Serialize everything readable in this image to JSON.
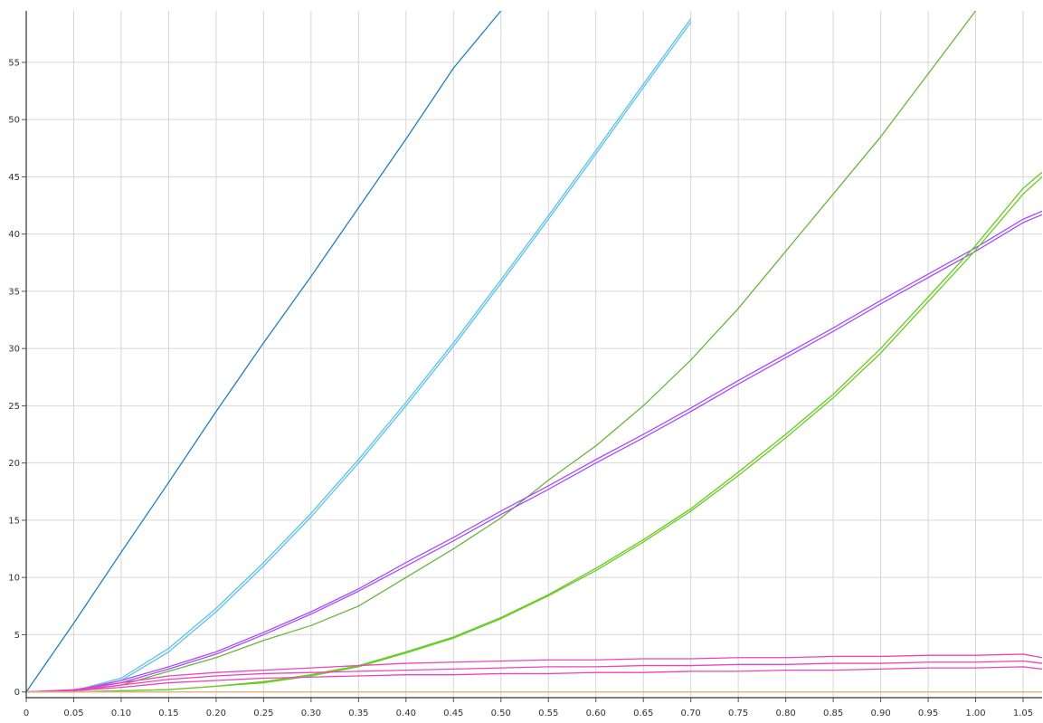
{
  "chart_data": {
    "type": "line",
    "title": "",
    "xlabel": "",
    "ylabel": "",
    "xlim": [
      0,
      1.07
    ],
    "ylim": [
      -0.5,
      59.5
    ],
    "grid": true,
    "legend": "none",
    "x_ticks": [
      "0",
      "0.05",
      "0.10",
      "0.15",
      "0.20",
      "0.25",
      "0.30",
      "0.35",
      "0.40",
      "0.45",
      "0.50",
      "0.55",
      "0.60",
      "0.65",
      "0.70",
      "0.75",
      "0.80",
      "0.85",
      "0.90",
      "0.95",
      "1.00",
      "1.05"
    ],
    "y_ticks": [
      "0",
      "5",
      "10",
      "15",
      "20",
      "25",
      "30",
      "35",
      "40",
      "45",
      "50",
      "55"
    ],
    "x": [
      0,
      0.05,
      0.1,
      0.15,
      0.2,
      0.25,
      0.3,
      0.35,
      0.4,
      0.45,
      0.5,
      0.55,
      0.6,
      0.65,
      0.7,
      0.75,
      0.8,
      0.85,
      0.9,
      0.95,
      1.0,
      1.05,
      1.07
    ],
    "series": [
      {
        "color": "#1f7fbf",
        "values": [
          0,
          6.0,
          12.2,
          18.3,
          24.5,
          30.5,
          36.3,
          42.3,
          48.3,
          54.5,
          59.5,
          null,
          null,
          null,
          null,
          null,
          null,
          null,
          null,
          null,
          null,
          null,
          null
        ]
      },
      {
        "color": "#5bc0eb",
        "values": [
          0,
          0.1,
          1.0,
          3.5,
          7.0,
          11.0,
          15.3,
          20.0,
          25.0,
          30.2,
          35.7,
          41.3,
          47.0,
          52.8,
          58.5,
          null,
          null,
          null,
          null,
          null,
          null,
          null,
          null
        ]
      },
      {
        "color": "#5bc0eb",
        "values": [
          0,
          0.1,
          1.2,
          3.8,
          7.3,
          11.3,
          15.6,
          20.3,
          25.3,
          30.5,
          36.0,
          41.6,
          47.3,
          53.1,
          58.8,
          null,
          null,
          null,
          null,
          null,
          null,
          null,
          null
        ]
      },
      {
        "color": "#6ab43c",
        "values": [
          0,
          0.1,
          0.6,
          1.8,
          3.0,
          4.5,
          5.8,
          7.5,
          10.0,
          12.5,
          15.2,
          18.5,
          21.5,
          25.0,
          29.0,
          33.5,
          38.5,
          43.5,
          48.5,
          54.0,
          59.5,
          null,
          null
        ]
      },
      {
        "color": "#a64dff",
        "values": [
          0,
          0.1,
          1.0,
          2.2,
          3.5,
          5.2,
          7.0,
          9.0,
          11.3,
          13.5,
          15.8,
          18.0,
          20.3,
          22.5,
          24.8,
          27.2,
          29.5,
          31.8,
          34.2,
          36.5,
          38.8,
          41.3,
          42.0
        ]
      },
      {
        "color": "#a64dff",
        "values": [
          0,
          0.1,
          0.8,
          2.0,
          3.3,
          5.0,
          6.8,
          8.8,
          11.0,
          13.2,
          15.5,
          17.7,
          20.0,
          22.2,
          24.5,
          26.9,
          29.2,
          31.5,
          33.9,
          36.2,
          38.5,
          41.0,
          41.7
        ]
      },
      {
        "color": "#66cc22",
        "values": [
          0,
          0.0,
          0.1,
          0.2,
          0.5,
          0.9,
          1.5,
          2.3,
          3.5,
          4.8,
          6.5,
          8.5,
          10.8,
          13.3,
          16.0,
          19.2,
          22.5,
          26.0,
          30.0,
          34.5,
          39.0,
          44.0,
          45.4
        ]
      },
      {
        "color": "#66cc22",
        "values": [
          0,
          0.0,
          0.1,
          0.2,
          0.5,
          0.8,
          1.4,
          2.2,
          3.4,
          4.7,
          6.4,
          8.4,
          10.6,
          13.1,
          15.8,
          18.9,
          22.2,
          25.7,
          29.6,
          34.1,
          38.6,
          43.5,
          45.0
        ]
      },
      {
        "color": "#ee44bb",
        "values": [
          0,
          0.2,
          0.8,
          1.4,
          1.7,
          1.9,
          2.1,
          2.3,
          2.5,
          2.6,
          2.7,
          2.8,
          2.8,
          2.9,
          2.9,
          3.0,
          3.0,
          3.1,
          3.1,
          3.2,
          3.2,
          3.3,
          3.0
        ]
      },
      {
        "color": "#ee44bb",
        "values": [
          0,
          0.1,
          0.6,
          1.1,
          1.4,
          1.6,
          1.7,
          1.8,
          1.9,
          2.0,
          2.1,
          2.2,
          2.2,
          2.3,
          2.3,
          2.4,
          2.4,
          2.5,
          2.5,
          2.6,
          2.6,
          2.7,
          2.5
        ]
      },
      {
        "color": "#ee44bb",
        "values": [
          0,
          0.1,
          0.4,
          0.8,
          1.0,
          1.2,
          1.3,
          1.4,
          1.5,
          1.5,
          1.6,
          1.6,
          1.7,
          1.7,
          1.8,
          1.8,
          1.9,
          1.9,
          2.0,
          2.1,
          2.1,
          2.2,
          2.0
        ]
      },
      {
        "color": "#e0b080",
        "values": [
          0,
          0,
          0,
          0,
          0,
          0,
          0,
          0,
          0,
          0,
          0,
          0,
          0,
          0,
          0,
          0,
          0,
          0,
          0,
          0,
          0,
          0,
          0
        ]
      }
    ]
  }
}
